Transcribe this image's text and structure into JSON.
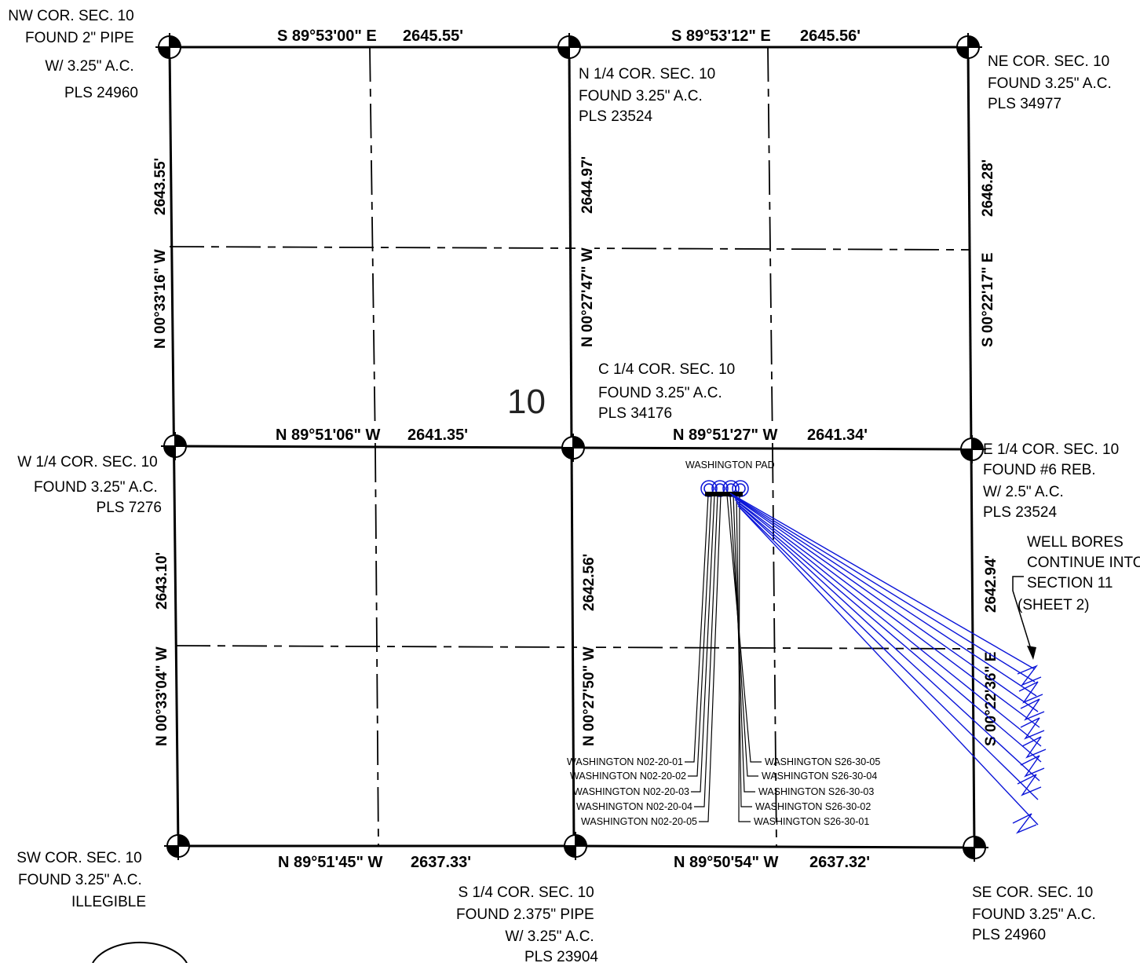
{
  "section_label": "10",
  "corners": {
    "nw": [
      "NW COR. SEC. 10",
      "FOUND 2\" PIPE",
      "W/ 3.25\" A.C.",
      "PLS 24960"
    ],
    "n_quarter": [
      "N 1/4 COR. SEC. 10",
      "FOUND 3.25\" A.C.",
      "PLS 23524"
    ],
    "ne": [
      "NE COR. SEC. 10",
      "FOUND 3.25\" A.C.",
      "PLS 34977"
    ],
    "c_quarter": [
      "C 1/4 COR. SEC. 10",
      "FOUND 3.25\" A.C.",
      "PLS 34176"
    ],
    "w_quarter": [
      "W 1/4 COR. SEC. 10",
      "FOUND 3.25\" A.C.",
      "PLS 7276"
    ],
    "e_quarter": [
      "E 1/4 COR. SEC. 10",
      "FOUND #6 REB.",
      "W/ 2.5\" A.C.",
      "PLS 23524"
    ],
    "sw": [
      "SW COR. SEC. 10",
      "FOUND 3.25\" A.C.",
      "ILLEGIBLE"
    ],
    "s_quarter": [
      "S 1/4 COR. SEC. 10",
      "FOUND 2.375\" PIPE",
      "W/ 3.25\" A.C.",
      "PLS 23904"
    ],
    "se": [
      "SE COR. SEC. 10",
      "FOUND 3.25\" A.C.",
      "PLS 24960"
    ]
  },
  "bearings": {
    "north_west_half": "S 89°53'00\" E",
    "north_west_dist": "2645.55'",
    "north_east_half": "S 89°53'12\" E",
    "north_east_dist": "2645.56'",
    "mid_west_half": "N 89°51'06\" W",
    "mid_west_dist": "2641.35'",
    "mid_east_half": "N 89°51'27\" W",
    "mid_east_dist": "2641.34'",
    "south_west_half": "N 89°51'45\" W",
    "south_west_dist": "2637.33'",
    "south_east_half": "N 89°50'54\" W",
    "south_east_dist": "2637.32'",
    "west_upper_dist": "2643.55'",
    "west_upper_brg": "N 00°33'16\" W",
    "west_lower_dist": "2643.10'",
    "west_lower_brg": "N 00°33'04\" W",
    "center_upper_dist": "2644.97'",
    "center_upper_brg": "N 00°27'47\" W",
    "center_lower_dist": "2642.56'",
    "center_lower_brg": "N 00°27'50\" W",
    "east_upper_dist": "2646.28'",
    "east_upper_brg": "S 00°22'17\" E",
    "east_lower_dist": "2642.94'",
    "east_lower_brg": "S 00°22'36\" E"
  },
  "pad_label": "WASHINGTON PAD",
  "wells_north": [
    "WASHINGTON N02-20-01",
    "WASHINGTON N02-20-02",
    "WASHINGTON N02-20-03",
    "WASHINGTON N02-20-04",
    "WASHINGTON N02-20-05"
  ],
  "wells_south": [
    "WASHINGTON S26-30-05",
    "WASHINGTON S26-30-04",
    "WASHINGTON S26-30-03",
    "WASHINGTON S26-30-02",
    "WASHINGTON S26-30-01"
  ],
  "note": [
    "WELL BORES",
    "CONTINUE INTO",
    "SECTION 11",
    "(SHEET 2)"
  ],
  "colors": {
    "linework": "#000000",
    "well_bores": "#0a14d8"
  }
}
